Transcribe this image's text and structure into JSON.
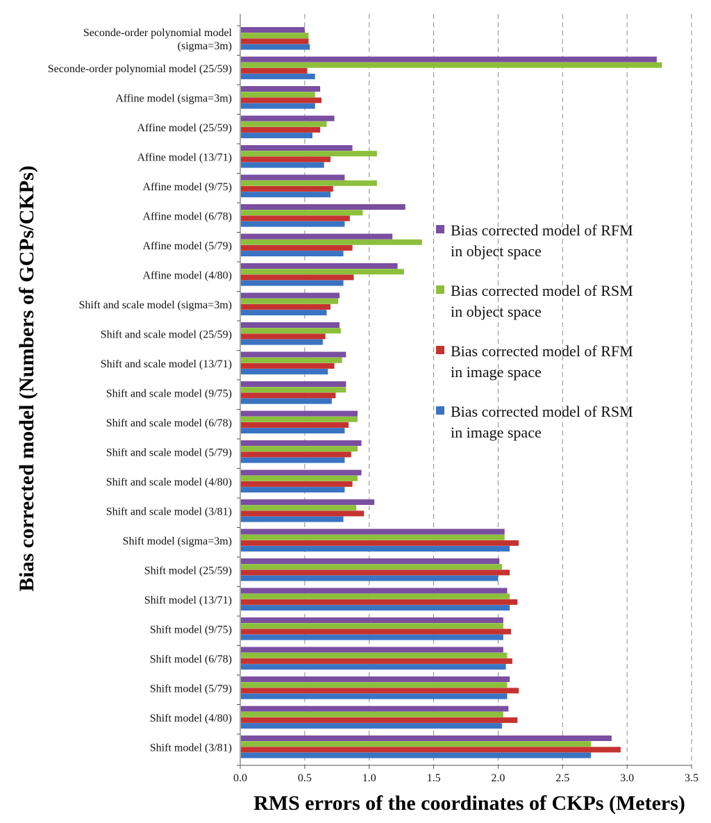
{
  "chart_data": {
    "type": "bar",
    "orientation": "horizontal",
    "title": "",
    "xlabel": "RMS errors of the coordinates of CKPs (Meters)",
    "ylabel": "Bias corrected model (Numbers of GCPs/CKPs)",
    "xlim": [
      0,
      3.5
    ],
    "xticks": [
      "0.0",
      "0.5",
      "1.0",
      "1.5",
      "2.0",
      "2.5",
      "3.0",
      "3.5"
    ],
    "grid": "vertical dashed",
    "legend_position": "right-middle",
    "categories": [
      [
        "Seconde-order polynomial model",
        "(sigma=3m)"
      ],
      [
        "Seconde-order polynomial model (25/59)"
      ],
      [
        "Affine model (sigma=3m)"
      ],
      [
        "Affine model (25/59)"
      ],
      [
        "Affine model (13/71)"
      ],
      [
        "Affine model (9/75)"
      ],
      [
        "Affine model (6/78)"
      ],
      [
        "Affine model (5/79)"
      ],
      [
        "Affine model (4/80)"
      ],
      [
        "Shift and scale model (sigma=3m)"
      ],
      [
        "Shift and scale model (25/59)"
      ],
      [
        "Shift and scale model (13/71)"
      ],
      [
        "Shift and scale model (9/75)"
      ],
      [
        "Shift and scale model (6/78)"
      ],
      [
        "Shift and scale model (5/79)"
      ],
      [
        "Shift and scale model (4/80)"
      ],
      [
        "Shift and scale model (3/81)"
      ],
      [
        "Shift model (sigma=3m)"
      ],
      [
        "Shift model (25/59)"
      ],
      [
        "Shift model (13/71)"
      ],
      [
        "Shift model (9/75)"
      ],
      [
        "Shift model (6/78)"
      ],
      [
        "Shift model (5/79)"
      ],
      [
        "Shift model (4/80)"
      ],
      [
        "Shift model (3/81)"
      ]
    ],
    "series": [
      {
        "name": "Bias corrected model of RFM in object space",
        "legend_lines": [
          "Bias corrected model of RFM",
          "in object space"
        ],
        "color": "#7a4ea0",
        "values": [
          0.5,
          3.23,
          0.62,
          0.73,
          0.87,
          0.81,
          1.28,
          1.18,
          1.22,
          0.77,
          0.77,
          0.82,
          0.82,
          0.91,
          0.94,
          0.94,
          1.04,
          2.05,
          2.01,
          2.07,
          2.04,
          2.04,
          2.09,
          2.08,
          2.88
        ]
      },
      {
        "name": "Bias corrected model of RSM in object space",
        "legend_lines": [
          "Bias corrected model of RSM",
          "in object space"
        ],
        "color": "#8cbf3c",
        "values": [
          0.53,
          3.27,
          0.58,
          0.67,
          1.06,
          1.06,
          0.95,
          1.41,
          1.27,
          0.76,
          0.78,
          0.79,
          0.82,
          0.91,
          0.91,
          0.91,
          0.9,
          2.05,
          2.03,
          2.09,
          2.04,
          2.07,
          2.07,
          2.04,
          2.72
        ]
      },
      {
        "name": "Bias corrected model of RFM in image space",
        "legend_lines": [
          "Bias corrected model of RFM",
          "in image space"
        ],
        "color": "#c53330",
        "values": [
          0.53,
          0.52,
          0.63,
          0.62,
          0.7,
          0.72,
          0.85,
          0.87,
          0.88,
          0.7,
          0.66,
          0.73,
          0.74,
          0.84,
          0.86,
          0.87,
          0.96,
          2.16,
          2.09,
          2.15,
          2.1,
          2.11,
          2.16,
          2.15,
          2.95
        ]
      },
      {
        "name": "Bias corrected model of RSM in image space",
        "legend_lines": [
          "Bias corrected model of RSM",
          "in image space"
        ],
        "color": "#3a73c2",
        "values": [
          0.54,
          0.58,
          0.58,
          0.56,
          0.65,
          0.7,
          0.81,
          0.8,
          0.8,
          0.67,
          0.64,
          0.68,
          0.71,
          0.81,
          0.81,
          0.81,
          0.8,
          2.09,
          2.0,
          2.09,
          2.04,
          2.06,
          2.07,
          2.03,
          2.72
        ]
      }
    ]
  }
}
